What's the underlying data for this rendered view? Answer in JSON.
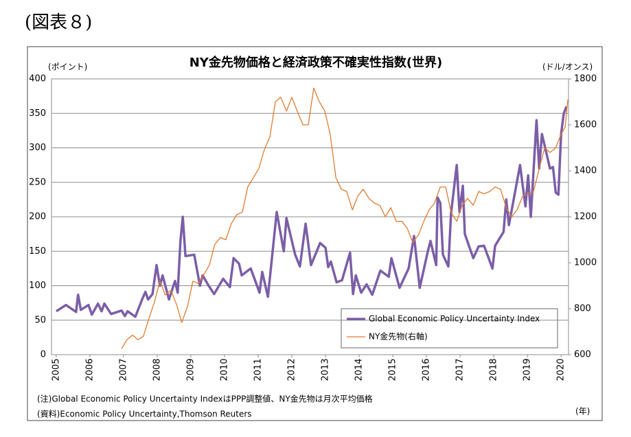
{
  "figure_label": "(図表８)",
  "notes": [
    "(注)Global Economic Policy Uncertainty IndexはPPP調整値、NY金先物は月次平均価格",
    "(資料)Economic Policy Uncertainty,Thomson Reuters"
  ],
  "chart_data": {
    "type": "line",
    "title": "NY金先物価格と経済政策不確実性指数(世界)",
    "y_label": "(ポイント)",
    "y2_label": "(ドル/オンス)",
    "x_label": "(年)",
    "xlim": [
      2004.86,
      2020.22
    ],
    "xticks": [
      2005,
      2006,
      2007,
      2008,
      2009,
      2010,
      2011,
      2012,
      2013,
      2014,
      2015,
      2016,
      2017,
      2018,
      2019,
      2020
    ],
    "ylim": [
      0,
      400
    ],
    "yticks": [
      0,
      50,
      100,
      150,
      200,
      250,
      300,
      350,
      400
    ],
    "y2lim": [
      600,
      1800
    ],
    "y2ticks": [
      600,
      800,
      1000,
      1200,
      1400,
      1600,
      1800
    ],
    "grid": true,
    "legend": "lower right",
    "series": [
      {
        "name": "Global Economic Policy Uncertainty Index",
        "color": "#7b5ea7",
        "axis": "y",
        "x": [
          2005.0,
          2005.29,
          2005.59,
          2005.65,
          2005.73,
          2005.96,
          2006.06,
          2006.24,
          2006.35,
          2006.43,
          2006.63,
          2006.94,
          2007.04,
          2007.12,
          2007.35,
          2007.55,
          2007.65,
          2007.73,
          2007.86,
          2007.98,
          2008.08,
          2008.16,
          2008.35,
          2008.53,
          2008.61,
          2008.69,
          2008.76,
          2008.84,
          2009.1,
          2009.27,
          2009.35,
          2009.53,
          2009.69,
          2009.96,
          2010.16,
          2010.27,
          2010.43,
          2010.51,
          2010.78,
          2011.04,
          2011.12,
          2011.29,
          2011.55,
          2011.76,
          2011.84,
          2012.1,
          2012.24,
          2012.41,
          2012.57,
          2012.84,
          2013.0,
          2013.08,
          2013.16,
          2013.33,
          2013.49,
          2013.73,
          2013.82,
          2013.9,
          2014.06,
          2014.22,
          2014.39,
          2014.63,
          2014.88,
          2014.96,
          2015.2,
          2015.47,
          2015.63,
          2015.8,
          2016.04,
          2016.12,
          2016.29,
          2016.33,
          2016.41,
          2016.49,
          2016.65,
          2016.73,
          2016.9,
          2016.98,
          2017.08,
          2017.14,
          2017.39,
          2017.55,
          2017.71,
          2017.96,
          2018.04,
          2018.29,
          2018.37,
          2018.45,
          2018.78,
          2018.94,
          2019.02,
          2019.1,
          2019.27,
          2019.35,
          2019.43,
          2019.67,
          2019.76,
          2019.84,
          2019.92,
          2020.0,
          2020.08,
          2020.16
        ],
        "values": [
          63,
          72,
          62,
          87,
          65,
          72,
          58,
          74,
          63,
          74,
          59,
          64,
          56,
          63,
          55,
          80,
          91,
          80,
          88,
          130,
          100,
          115,
          80,
          107,
          90,
          165,
          200,
          143,
          145,
          100,
          115,
          100,
          88,
          110,
          98,
          140,
          132,
          115,
          125,
          90,
          120,
          84,
          207,
          150,
          198,
          145,
          128,
          190,
          130,
          162,
          155,
          127,
          135,
          105,
          108,
          148,
          88,
          115,
          90,
          102,
          87,
          122,
          113,
          140,
          97,
          125,
          172,
          97,
          150,
          165,
          130,
          228,
          220,
          145,
          128,
          205,
          275,
          207,
          245,
          175,
          140,
          157,
          158,
          125,
          158,
          178,
          225,
          188,
          275,
          215,
          260,
          200,
          340,
          270,
          320,
          270,
          272,
          235,
          232,
          320,
          350,
          360
        ]
      },
      {
        "name": "NY金先物(右軸)",
        "color": "#e07b2e",
        "axis": "y2",
        "x": [
          2006.94,
          2007.1,
          2007.27,
          2007.43,
          2007.59,
          2007.76,
          2007.92,
          2008.08,
          2008.24,
          2008.41,
          2008.57,
          2008.73,
          2008.9,
          2009.06,
          2009.22,
          2009.39,
          2009.55,
          2009.71,
          2009.88,
          2010.04,
          2010.2,
          2010.37,
          2010.53,
          2010.69,
          2010.86,
          2011.02,
          2011.18,
          2011.35,
          2011.51,
          2011.67,
          2011.84,
          2012.0,
          2012.16,
          2012.33,
          2012.49,
          2012.65,
          2012.82,
          2012.98,
          2013.14,
          2013.31,
          2013.47,
          2013.63,
          2013.8,
          2013.96,
          2014.12,
          2014.29,
          2014.45,
          2014.61,
          2014.78,
          2014.94,
          2015.1,
          2015.27,
          2015.43,
          2015.59,
          2015.76,
          2015.92,
          2016.08,
          2016.24,
          2016.41,
          2016.57,
          2016.73,
          2016.9,
          2017.06,
          2017.22,
          2017.39,
          2017.55,
          2017.71,
          2017.88,
          2018.04,
          2018.2,
          2018.37,
          2018.53,
          2018.69,
          2018.86,
          2019.02,
          2019.18,
          2019.35,
          2019.51,
          2019.67,
          2019.84,
          2020.0,
          2020.12,
          2020.2
        ],
        "values": [
          625,
          665,
          685,
          665,
          680,
          760,
          830,
          920,
          860,
          880,
          820,
          740,
          810,
          920,
          910,
          950,
          990,
          1080,
          1110,
          1100,
          1170,
          1210,
          1220,
          1330,
          1370,
          1410,
          1490,
          1550,
          1700,
          1720,
          1660,
          1720,
          1660,
          1600,
          1600,
          1760,
          1700,
          1660,
          1560,
          1370,
          1320,
          1310,
          1230,
          1290,
          1320,
          1280,
          1260,
          1250,
          1200,
          1240,
          1180,
          1180,
          1150,
          1090,
          1120,
          1180,
          1230,
          1260,
          1330,
          1330,
          1220,
          1180,
          1250,
          1280,
          1250,
          1310,
          1300,
          1310,
          1330,
          1320,
          1240,
          1200,
          1230,
          1290,
          1300,
          1310,
          1410,
          1500,
          1480,
          1500,
          1560,
          1590,
          1710
        ]
      }
    ]
  }
}
